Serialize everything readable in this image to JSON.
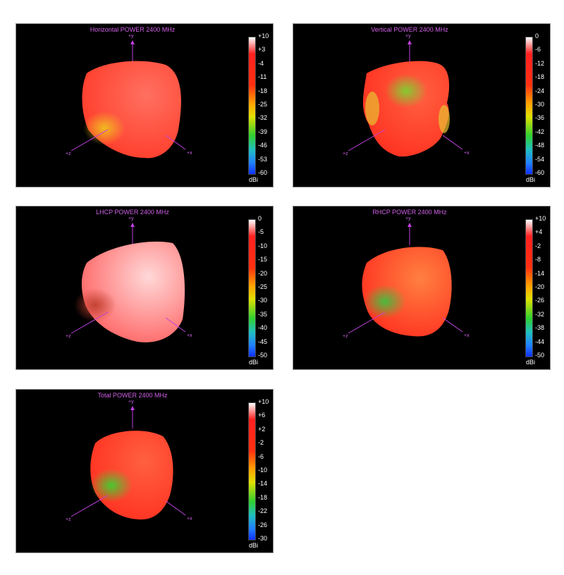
{
  "chart_data": [
    {
      "type": "3d-radiation-pattern",
      "title": "Horizontal POWER 2400  MHz",
      "colorbar": {
        "ticks": [
          "+10",
          "+3",
          "-4",
          "-11",
          "-18",
          "-25",
          "-32",
          "-39",
          "-46",
          "-53",
          "-60"
        ],
        "unit": "dBi",
        "range": [
          -60,
          10
        ]
      },
      "axes": {
        "y": "+y",
        "z": "+z",
        "x": "+x"
      }
    },
    {
      "type": "3d-radiation-pattern",
      "title": "Vertical POWER 2400  MHz",
      "colorbar": {
        "ticks": [
          "0",
          "-6",
          "-12",
          "-18",
          "-24",
          "-30",
          "-36",
          "-42",
          "-48",
          "-54",
          "-60"
        ],
        "unit": "dBi",
        "range": [
          -60,
          0
        ]
      },
      "axes": {
        "y": "+y",
        "z": "+z",
        "x": "+x"
      }
    },
    {
      "type": "3d-radiation-pattern",
      "title": "LHCP POWER 2400  MHz",
      "colorbar": {
        "ticks": [
          "0",
          "-5",
          "-10",
          "-15",
          "-20",
          "-25",
          "-30",
          "-35",
          "-40",
          "-45",
          "-50"
        ],
        "unit": "dBi",
        "range": [
          -50,
          0
        ]
      },
      "axes": {
        "y": "+y",
        "z": "+z",
        "x": "+x"
      }
    },
    {
      "type": "3d-radiation-pattern",
      "title": "RHCP POWER 2400  MHz",
      "colorbar": {
        "ticks": [
          "+10",
          "+4",
          "-2",
          "-8",
          "-14",
          "-20",
          "-26",
          "-32",
          "-38",
          "-44",
          "-50"
        ],
        "unit": "dBi",
        "range": [
          -50,
          10
        ]
      },
      "axes": {
        "y": "+y",
        "z": "+z",
        "x": "+x"
      }
    },
    {
      "type": "3d-radiation-pattern",
      "title": "Total POWER 2400  MHz",
      "colorbar": {
        "ticks": [
          "+10",
          "+6",
          "+2",
          "-2",
          "-6",
          "-10",
          "-14",
          "-18",
          "-22",
          "-26",
          "-30"
        ],
        "unit": "dBi",
        "range": [
          -30,
          10
        ]
      },
      "axes": {
        "y": "+y",
        "z": "+z",
        "x": "+x"
      }
    }
  ],
  "colors": {
    "title": "#d060e8",
    "axis": "#c040e0",
    "background": "#000000"
  }
}
